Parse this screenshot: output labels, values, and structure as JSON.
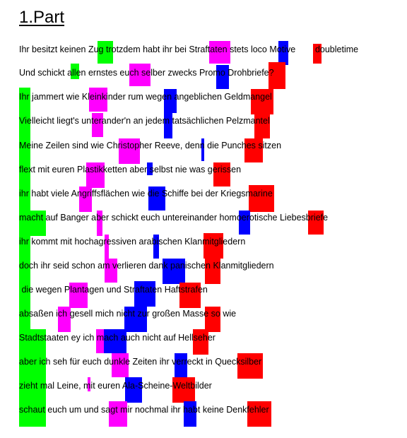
{
  "title": "1.Part",
  "colors": {
    "green": "#00ff00",
    "magenta": "#ff00ff",
    "blue": "#0000ff",
    "red": "#ff0000"
  },
  "lines": [
    "Ihr besitzt keinen Zug trotzdem habt ihr bei Straftaten stets loco Motive        doubletime",
    "Und schickt allen ernstes euch selber zwecks Promo Drohbriefe?",
    "Ihr jammert wie Kleinkinder rum wegen angeblichen Geldmangel",
    "Vielleicht liegt's unterander'n an jedem tatsächlichen Pelzmantel",
    "Meine Zeilen sind wie Christopher Reeve, denn die Punches sitzen",
    "flext mit euren Plastikketten aber selbst nie was gerissen",
    "ihr habt viele Angriffsflächen wie die Schiffe bei der Kriegsmarine",
    "macht auf Banger aber schickt euch untereinander homoerotische Liebesbriefe",
    "ihr kommt mit hochagressiven arabischen Klanmitgliedern",
    "doch ihr seid schon am verlieren dank panischen Klanmitgliedern",
    " die wegen Plantagen und Straftaten Haftstrafen",
    "absaßen ich gesell mich nicht zur großen Masse so wie",
    "Stadtstaaten ey ich mach auch nicht auf Hellseher",
    "aber ich seh für euch dunkle Zeiten ihr verreckt in Quecksilber",
    "zieht mal Leine, mit euren Ala-Scheine-Weltbilder",
    "schaut euch um und sagt mir nochmal ihr habt keine Denkfehler"
  ]
}
